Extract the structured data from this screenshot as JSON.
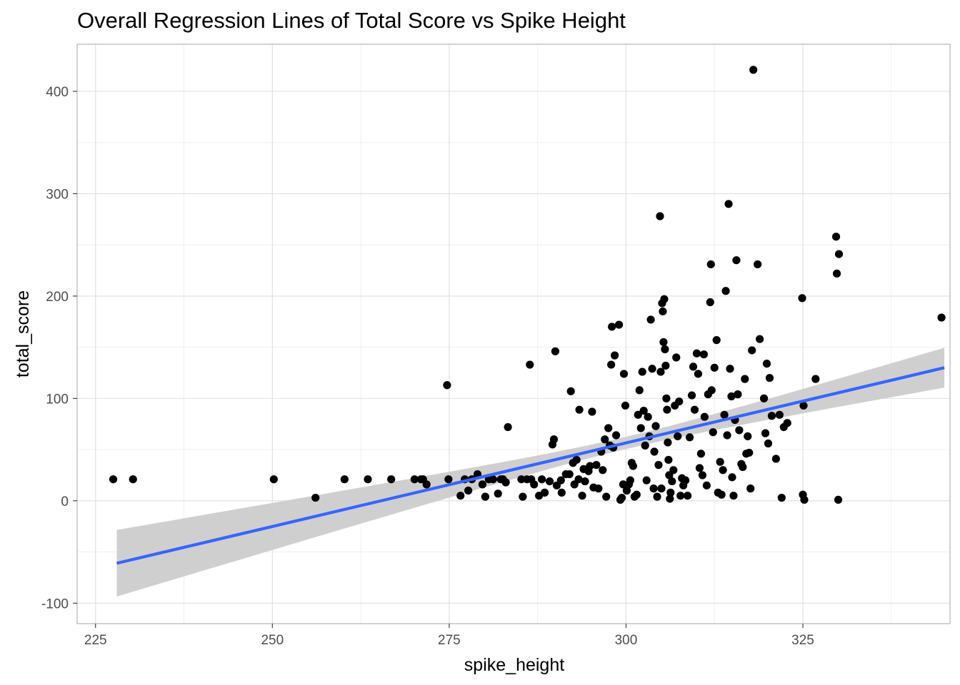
{
  "chart_data": {
    "type": "scatter",
    "title": "Overall Regression Lines of Total Score vs Spike Height",
    "xlabel": "spike_height",
    "ylabel": "total_score",
    "xlim": [
      222.4,
      345.8
    ],
    "ylim": [
      -120,
      446
    ],
    "x_ticks": [
      225,
      250,
      275,
      300,
      325
    ],
    "y_ticks": [
      -100,
      0,
      100,
      200,
      300,
      400
    ],
    "x_tick_labels": [
      "225",
      "250",
      "275",
      "300",
      "325"
    ],
    "y_tick_labels": [
      "-100",
      "0",
      "100",
      "200",
      "300",
      "400"
    ],
    "grid": true,
    "legend": "none",
    "colors": {
      "points": "#000000",
      "line": "#3366ff",
      "ribbon": "#cccccc",
      "grid": "#dedede",
      "panel_border": "#b3b3b3"
    },
    "regression": {
      "x": [
        228,
        345
      ],
      "y": [
        -61,
        130
      ],
      "ci_lower": [
        -93,
        111
      ],
      "ci_upper": [
        -28,
        150
      ]
    },
    "points": [
      [
        227.5,
        21
      ],
      [
        230.3,
        21
      ],
      [
        250.2,
        21
      ],
      [
        256.1,
        3
      ],
      [
        260.2,
        21
      ],
      [
        263.5,
        21
      ],
      [
        266.8,
        21
      ],
      [
        270.1,
        21
      ],
      [
        271.0,
        21
      ],
      [
        271.3,
        21
      ],
      [
        271.8,
        16
      ],
      [
        274.7,
        113
      ],
      [
        274.9,
        21
      ],
      [
        276.6,
        5
      ],
      [
        277.2,
        21
      ],
      [
        277.7,
        10
      ],
      [
        278.2,
        21
      ],
      [
        279.0,
        26
      ],
      [
        279.7,
        16
      ],
      [
        280.1,
        4
      ],
      [
        280.6,
        21
      ],
      [
        281.2,
        21
      ],
      [
        281.9,
        7
      ],
      [
        282.3,
        21
      ],
      [
        282.6,
        21
      ],
      [
        283.0,
        18
      ],
      [
        283.3,
        72
      ],
      [
        285.2,
        21
      ],
      [
        285.4,
        4
      ],
      [
        286.0,
        21
      ],
      [
        286.4,
        133
      ],
      [
        286.6,
        21
      ],
      [
        287.0,
        16
      ],
      [
        287.7,
        5
      ],
      [
        288.1,
        21
      ],
      [
        288.5,
        8
      ],
      [
        289.2,
        19
      ],
      [
        289.6,
        55
      ],
      [
        289.8,
        60
      ],
      [
        290.0,
        146
      ],
      [
        290.2,
        15
      ],
      [
        290.8,
        20
      ],
      [
        290.9,
        8
      ],
      [
        291.5,
        26
      ],
      [
        292.0,
        26
      ],
      [
        292.2,
        107
      ],
      [
        292.5,
        37
      ],
      [
        292.7,
        16
      ],
      [
        293.0,
        40
      ],
      [
        293.3,
        21
      ],
      [
        293.4,
        89
      ],
      [
        293.8,
        5
      ],
      [
        294.0,
        31
      ],
      [
        294.2,
        19
      ],
      [
        294.7,
        29
      ],
      [
        294.9,
        34
      ],
      [
        295.2,
        87
      ],
      [
        295.4,
        13
      ],
      [
        295.8,
        35
      ],
      [
        296.1,
        12
      ],
      [
        296.5,
        48
      ],
      [
        296.7,
        30
      ],
      [
        297.0,
        60
      ],
      [
        297.2,
        4
      ],
      [
        297.5,
        71
      ],
      [
        297.7,
        54
      ],
      [
        297.9,
        133
      ],
      [
        298.0,
        170
      ],
      [
        298.2,
        52
      ],
      [
        298.4,
        142
      ],
      [
        298.6,
        64
      ],
      [
        299.0,
        172
      ],
      [
        299.2,
        1
      ],
      [
        299.4,
        3
      ],
      [
        299.6,
        16
      ],
      [
        299.7,
        124
      ],
      [
        299.9,
        93
      ],
      [
        300.1,
        10
      ],
      [
        300.4,
        16
      ],
      [
        300.6,
        20
      ],
      [
        300.8,
        37
      ],
      [
        301.0,
        34
      ],
      [
        301.2,
        4
      ],
      [
        301.5,
        6
      ],
      [
        301.7,
        84
      ],
      [
        301.9,
        108
      ],
      [
        302.1,
        71
      ],
      [
        302.3,
        126
      ],
      [
        302.5,
        88
      ],
      [
        302.7,
        54
      ],
      [
        302.9,
        20
      ],
      [
        303.1,
        82
      ],
      [
        303.3,
        63
      ],
      [
        303.5,
        177
      ],
      [
        303.7,
        129
      ],
      [
        303.9,
        12
      ],
      [
        304.0,
        48
      ],
      [
        304.2,
        73
      ],
      [
        304.4,
        4
      ],
      [
        304.6,
        35
      ],
      [
        304.8,
        278
      ],
      [
        304.9,
        126
      ],
      [
        305.0,
        12
      ],
      [
        305.1,
        193
      ],
      [
        305.2,
        185
      ],
      [
        305.3,
        155
      ],
      [
        305.4,
        197
      ],
      [
        305.5,
        148
      ],
      [
        305.6,
        132
      ],
      [
        305.7,
        100
      ],
      [
        305.8,
        89
      ],
      [
        305.9,
        57
      ],
      [
        306.0,
        40
      ],
      [
        306.1,
        25
      ],
      [
        306.2,
        2
      ],
      [
        306.3,
        8
      ],
      [
        306.5,
        19
      ],
      [
        306.7,
        30
      ],
      [
        306.9,
        93
      ],
      [
        307.1,
        140
      ],
      [
        307.3,
        63
      ],
      [
        307.5,
        97
      ],
      [
        307.7,
        5
      ],
      [
        307.9,
        22
      ],
      [
        308.1,
        15
      ],
      [
        308.4,
        20
      ],
      [
        308.7,
        5
      ],
      [
        309.0,
        62
      ],
      [
        309.3,
        103
      ],
      [
        309.5,
        131
      ],
      [
        309.7,
        89
      ],
      [
        310.0,
        144
      ],
      [
        310.2,
        124
      ],
      [
        310.4,
        32
      ],
      [
        310.6,
        46
      ],
      [
        310.8,
        25
      ],
      [
        311.0,
        143
      ],
      [
        311.1,
        82
      ],
      [
        311.4,
        15
      ],
      [
        311.6,
        104
      ],
      [
        311.9,
        194
      ],
      [
        312.0,
        231
      ],
      [
        312.1,
        108
      ],
      [
        312.3,
        67
      ],
      [
        312.5,
        130
      ],
      [
        312.8,
        157
      ],
      [
        313.0,
        8
      ],
      [
        313.3,
        38
      ],
      [
        313.5,
        6
      ],
      [
        313.7,
        30
      ],
      [
        313.9,
        84
      ],
      [
        314.1,
        205
      ],
      [
        314.3,
        64
      ],
      [
        314.5,
        290
      ],
      [
        314.7,
        129
      ],
      [
        314.9,
        102
      ],
      [
        315.0,
        23
      ],
      [
        315.2,
        5
      ],
      [
        315.4,
        79
      ],
      [
        315.6,
        235
      ],
      [
        315.8,
        104
      ],
      [
        316.0,
        69
      ],
      [
        316.3,
        36
      ],
      [
        316.5,
        33
      ],
      [
        316.8,
        119
      ],
      [
        317.0,
        46
      ],
      [
        317.2,
        63
      ],
      [
        317.4,
        47
      ],
      [
        317.6,
        12
      ],
      [
        317.8,
        147
      ],
      [
        318.0,
        421
      ],
      [
        318.6,
        231
      ],
      [
        318.9,
        158
      ],
      [
        319.5,
        100
      ],
      [
        319.7,
        66
      ],
      [
        319.9,
        134
      ],
      [
        320.1,
        56
      ],
      [
        320.3,
        120
      ],
      [
        320.6,
        83
      ],
      [
        321.2,
        41
      ],
      [
        321.7,
        84
      ],
      [
        322.0,
        3
      ],
      [
        322.3,
        72
      ],
      [
        322.8,
        76
      ],
      [
        324.9,
        198
      ],
      [
        325.0,
        6
      ],
      [
        325.1,
        93
      ],
      [
        325.2,
        1
      ],
      [
        326.8,
        119
      ],
      [
        329.7,
        258
      ],
      [
        329.8,
        222
      ],
      [
        330.0,
        1
      ],
      [
        330.1,
        241
      ],
      [
        344.6,
        179
      ]
    ]
  }
}
